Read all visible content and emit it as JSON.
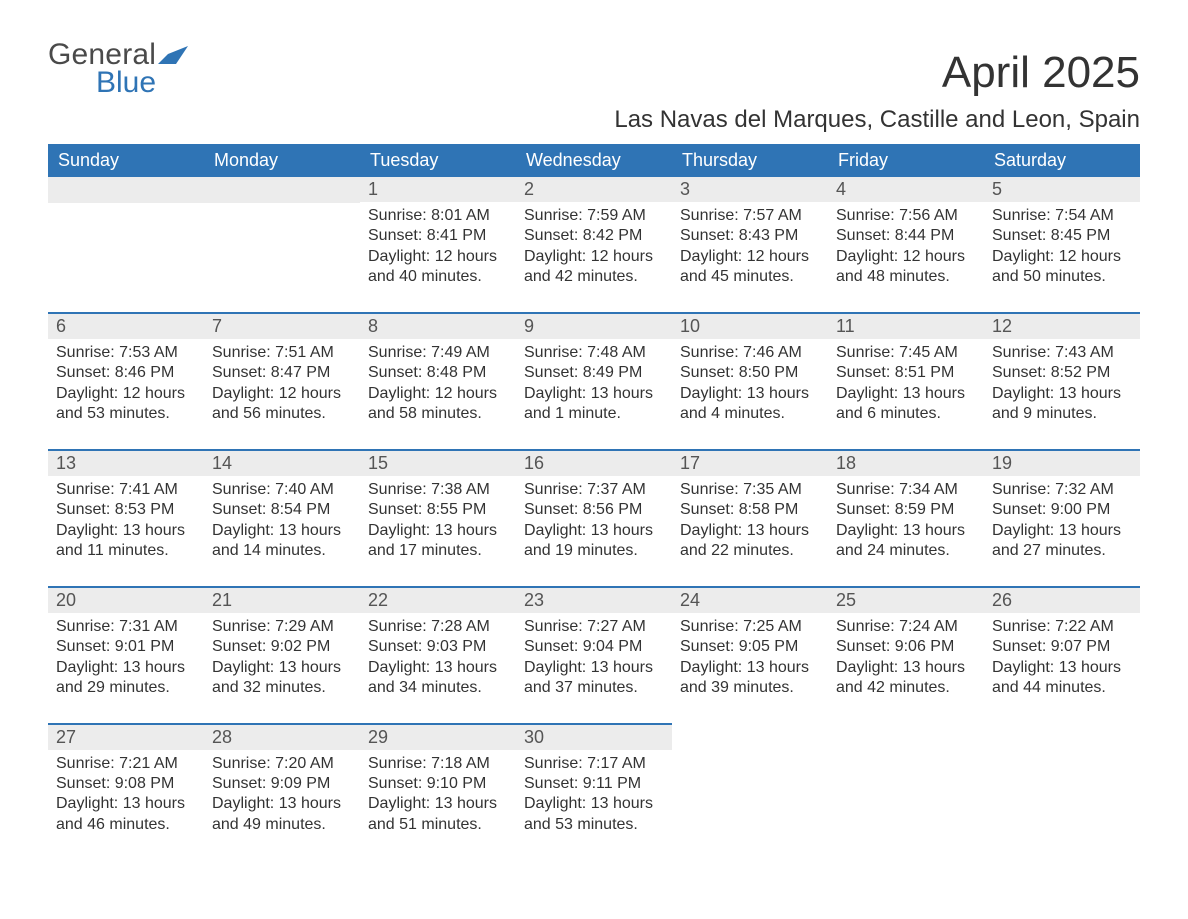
{
  "brand": {
    "line1": "General",
    "line2": "Blue",
    "text_color": "#4a4a4a",
    "accent_color": "#2f74b5"
  },
  "header": {
    "title": "April 2025",
    "subtitle": "Las Navas del Marques, Castille and Leon, Spain"
  },
  "styling": {
    "page_bg": "#ffffff",
    "header_row_bg": "#2f74b5",
    "header_row_text": "#ffffff",
    "daynum_bg": "#ececec",
    "daynum_border_top": "#2f74b5",
    "body_text_color": "#333333",
    "title_fontsize_pt": 33,
    "subtitle_fontsize_pt": 18,
    "dayheader_fontsize_pt": 13,
    "daynum_fontsize_pt": 13,
    "body_fontsize_pt": 12,
    "columns": 7
  },
  "day_headers": [
    "Sunday",
    "Monday",
    "Tuesday",
    "Wednesday",
    "Thursday",
    "Friday",
    "Saturday"
  ],
  "weeks": [
    [
      null,
      null,
      {
        "n": "1",
        "sunrise": "8:01 AM",
        "sunset": "8:41 PM",
        "dh": "12",
        "dm": "40"
      },
      {
        "n": "2",
        "sunrise": "7:59 AM",
        "sunset": "8:42 PM",
        "dh": "12",
        "dm": "42"
      },
      {
        "n": "3",
        "sunrise": "7:57 AM",
        "sunset": "8:43 PM",
        "dh": "12",
        "dm": "45"
      },
      {
        "n": "4",
        "sunrise": "7:56 AM",
        "sunset": "8:44 PM",
        "dh": "12",
        "dm": "48"
      },
      {
        "n": "5",
        "sunrise": "7:54 AM",
        "sunset": "8:45 PM",
        "dh": "12",
        "dm": "50"
      }
    ],
    [
      {
        "n": "6",
        "sunrise": "7:53 AM",
        "sunset": "8:46 PM",
        "dh": "12",
        "dm": "53"
      },
      {
        "n": "7",
        "sunrise": "7:51 AM",
        "sunset": "8:47 PM",
        "dh": "12",
        "dm": "56"
      },
      {
        "n": "8",
        "sunrise": "7:49 AM",
        "sunset": "8:48 PM",
        "dh": "12",
        "dm": "58"
      },
      {
        "n": "9",
        "sunrise": "7:48 AM",
        "sunset": "8:49 PM",
        "dh": "13",
        "dm": "1"
      },
      {
        "n": "10",
        "sunrise": "7:46 AM",
        "sunset": "8:50 PM",
        "dh": "13",
        "dm": "4"
      },
      {
        "n": "11",
        "sunrise": "7:45 AM",
        "sunset": "8:51 PM",
        "dh": "13",
        "dm": "6"
      },
      {
        "n": "12",
        "sunrise": "7:43 AM",
        "sunset": "8:52 PM",
        "dh": "13",
        "dm": "9"
      }
    ],
    [
      {
        "n": "13",
        "sunrise": "7:41 AM",
        "sunset": "8:53 PM",
        "dh": "13",
        "dm": "11"
      },
      {
        "n": "14",
        "sunrise": "7:40 AM",
        "sunset": "8:54 PM",
        "dh": "13",
        "dm": "14"
      },
      {
        "n": "15",
        "sunrise": "7:38 AM",
        "sunset": "8:55 PM",
        "dh": "13",
        "dm": "17"
      },
      {
        "n": "16",
        "sunrise": "7:37 AM",
        "sunset": "8:56 PM",
        "dh": "13",
        "dm": "19"
      },
      {
        "n": "17",
        "sunrise": "7:35 AM",
        "sunset": "8:58 PM",
        "dh": "13",
        "dm": "22"
      },
      {
        "n": "18",
        "sunrise": "7:34 AM",
        "sunset": "8:59 PM",
        "dh": "13",
        "dm": "24"
      },
      {
        "n": "19",
        "sunrise": "7:32 AM",
        "sunset": "9:00 PM",
        "dh": "13",
        "dm": "27"
      }
    ],
    [
      {
        "n": "20",
        "sunrise": "7:31 AM",
        "sunset": "9:01 PM",
        "dh": "13",
        "dm": "29"
      },
      {
        "n": "21",
        "sunrise": "7:29 AM",
        "sunset": "9:02 PM",
        "dh": "13",
        "dm": "32"
      },
      {
        "n": "22",
        "sunrise": "7:28 AM",
        "sunset": "9:03 PM",
        "dh": "13",
        "dm": "34"
      },
      {
        "n": "23",
        "sunrise": "7:27 AM",
        "sunset": "9:04 PM",
        "dh": "13",
        "dm": "37"
      },
      {
        "n": "24",
        "sunrise": "7:25 AM",
        "sunset": "9:05 PM",
        "dh": "13",
        "dm": "39"
      },
      {
        "n": "25",
        "sunrise": "7:24 AM",
        "sunset": "9:06 PM",
        "dh": "13",
        "dm": "42"
      },
      {
        "n": "26",
        "sunrise": "7:22 AM",
        "sunset": "9:07 PM",
        "dh": "13",
        "dm": "44"
      }
    ],
    [
      {
        "n": "27",
        "sunrise": "7:21 AM",
        "sunset": "9:08 PM",
        "dh": "13",
        "dm": "46"
      },
      {
        "n": "28",
        "sunrise": "7:20 AM",
        "sunset": "9:09 PM",
        "dh": "13",
        "dm": "49"
      },
      {
        "n": "29",
        "sunrise": "7:18 AM",
        "sunset": "9:10 PM",
        "dh": "13",
        "dm": "51"
      },
      {
        "n": "30",
        "sunrise": "7:17 AM",
        "sunset": "9:11 PM",
        "dh": "13",
        "dm": "53"
      },
      null,
      null,
      null
    ]
  ],
  "labels": {
    "sunrise_prefix": "Sunrise: ",
    "sunset_prefix": "Sunset: ",
    "daylight_prefix": "Daylight: ",
    "hours_word": " hours",
    "and_word": "and ",
    "minute_word": " minute.",
    "minutes_word": " minutes."
  }
}
